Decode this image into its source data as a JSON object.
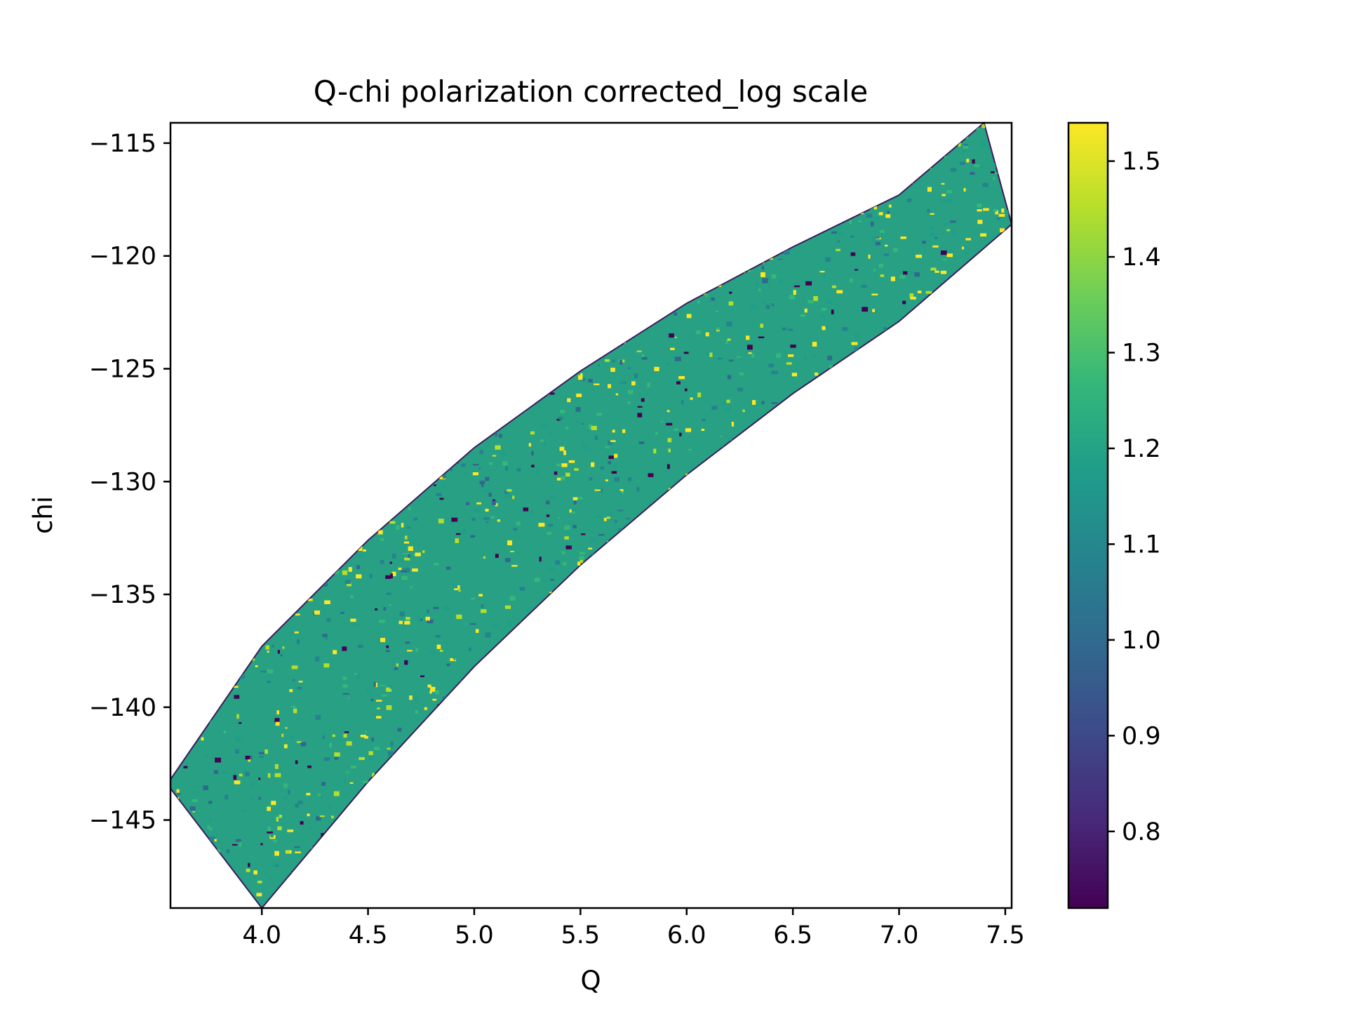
{
  "chart_data": {
    "type": "heatmap",
    "title": "Q-chi polarization corrected_log scale",
    "xlabel": "Q",
    "ylabel": "chi",
    "xlim": [
      3.57,
      7.53
    ],
    "ylim": [
      -148.9,
      -114.1
    ],
    "x_ticks": [
      4.0,
      4.5,
      5.0,
      5.5,
      6.0,
      6.5,
      7.0,
      7.5
    ],
    "x_tick_labels": [
      "4.0",
      "4.5",
      "5.0",
      "5.5",
      "6.0",
      "6.5",
      "7.0",
      "7.5"
    ],
    "y_ticks": [
      -115,
      -120,
      -125,
      -130,
      -135,
      -140,
      -145
    ],
    "y_tick_labels": [
      "−115",
      "−120",
      "−125",
      "−130",
      "−135",
      "−140",
      "−145"
    ],
    "region": {
      "upper_boundary": [
        [
          3.57,
          -143.2
        ],
        [
          4.0,
          -137.3
        ],
        [
          4.5,
          -132.6
        ],
        [
          5.0,
          -128.5
        ],
        [
          5.5,
          -125.1
        ],
        [
          6.0,
          -122.1
        ],
        [
          6.5,
          -119.6
        ],
        [
          7.0,
          -117.3
        ],
        [
          7.4,
          -114.1
        ]
      ],
      "lower_boundary": [
        [
          3.57,
          -143.6
        ],
        [
          4.0,
          -148.9
        ],
        [
          4.5,
          -143.3
        ],
        [
          5.0,
          -138.2
        ],
        [
          5.5,
          -133.7
        ],
        [
          6.0,
          -129.7
        ],
        [
          6.5,
          -126.1
        ],
        [
          7.0,
          -122.9
        ],
        [
          7.53,
          -118.6
        ]
      ],
      "right_edge": [
        [
          7.4,
          -114.1
        ],
        [
          7.53,
          -118.6
        ]
      ],
      "left_edge": [
        [
          3.57,
          -143.2
        ],
        [
          4.0,
          -148.9
        ]
      ]
    },
    "colorbar": {
      "colormap": "viridis",
      "range": [
        0.72,
        1.54
      ],
      "ticks": [
        0.8,
        0.9,
        1.0,
        1.1,
        1.2,
        1.3,
        1.4,
        1.5
      ],
      "tick_labels": [
        "0.8",
        "0.9",
        "1.0",
        "1.1",
        "1.2",
        "1.3",
        "1.4",
        "1.5"
      ]
    },
    "typical_value": 1.2,
    "grid": false
  },
  "colors": {
    "background": "#ffffff",
    "axes": "#000000",
    "viridis": [
      "#440154",
      "#482878",
      "#3e4989",
      "#31688e",
      "#26828e",
      "#1f9e89",
      "#35b779",
      "#6ece58",
      "#b5de2b",
      "#fde725"
    ]
  }
}
